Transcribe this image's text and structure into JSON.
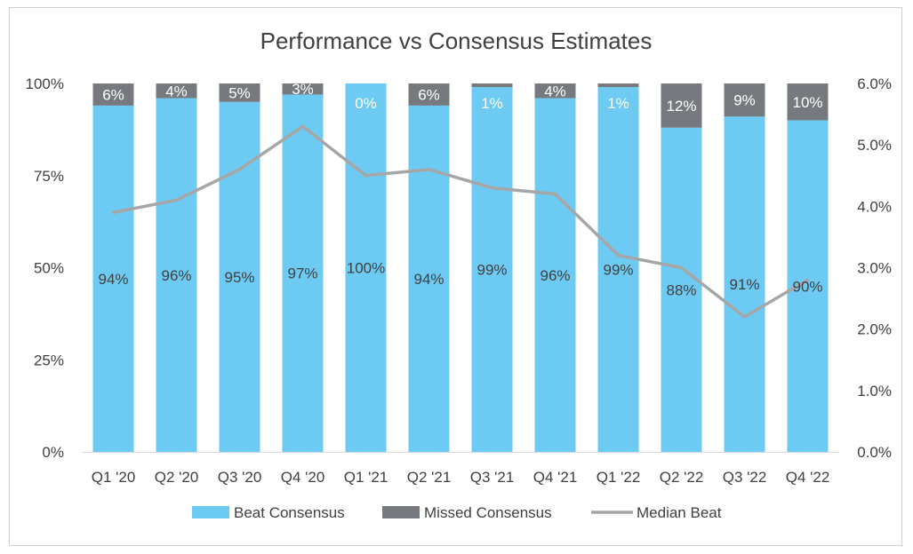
{
  "chart_data": {
    "type": "bar",
    "title": "Performance vs Consensus Estimates",
    "categories": [
      "Q1 '20",
      "Q2 '20",
      "Q3 '20",
      "Q4 '20",
      "Q1 '21",
      "Q2 '21",
      "Q3 '21",
      "Q4 '21",
      "Q1 '22",
      "Q2 '22",
      "Q3 '22",
      "Q4 '22"
    ],
    "series": [
      {
        "name": "Beat Consensus",
        "kind": "stacked-bar",
        "axis": "left",
        "color": "#6DCAF2",
        "values": [
          94,
          96,
          95,
          97,
          100,
          94,
          99,
          96,
          99,
          88,
          91,
          90
        ],
        "labels": [
          "94%",
          "96%",
          "95%",
          "97%",
          "100%",
          "94%",
          "99%",
          "96%",
          "99%",
          "88%",
          "91%",
          "90%"
        ]
      },
      {
        "name": "Missed Consensus",
        "kind": "stacked-bar",
        "axis": "left",
        "color": "#767A7E",
        "values": [
          6,
          4,
          5,
          3,
          0,
          6,
          1,
          4,
          1,
          12,
          9,
          10
        ],
        "labels": [
          "6%",
          "4%",
          "5%",
          "3%",
          "0%",
          "6%",
          "1%",
          "4%",
          "1%",
          "12%",
          "9%",
          "10%"
        ]
      },
      {
        "name": "Median Beat",
        "kind": "line",
        "axis": "right",
        "color": "#A6A6A6",
        "values": [
          3.9,
          4.1,
          4.6,
          5.3,
          4.5,
          4.6,
          4.3,
          4.2,
          3.2,
          3.0,
          2.2,
          2.8
        ]
      }
    ],
    "left_axis": {
      "ylim": [
        0,
        100
      ],
      "ticks": [
        0,
        25,
        50,
        75,
        100
      ],
      "tick_labels": [
        "0%",
        "25%",
        "50%",
        "75%",
        "100%"
      ]
    },
    "right_axis": {
      "ylim": [
        0,
        6
      ],
      "ticks": [
        0,
        1,
        2,
        3,
        4,
        5,
        6
      ],
      "tick_labels": [
        "0.0%",
        "1.0%",
        "2.0%",
        "3.0%",
        "4.0%",
        "5.0%",
        "6.0%"
      ]
    },
    "grid": false,
    "legend_position": "bottom"
  }
}
